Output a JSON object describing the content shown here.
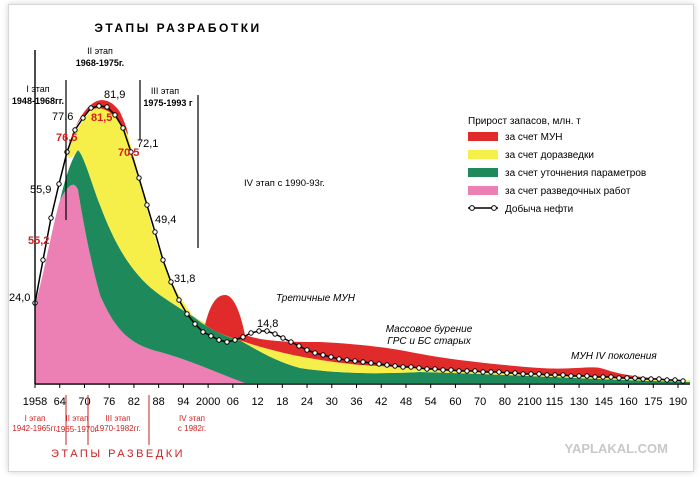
{
  "chart_data": {
    "type": "area",
    "title": "ЭТАПЫ РАЗРАБОТКИ",
    "bottom_title": "ЭТАПЫ РАЗВЕДКИ",
    "watermark": "YAPLAKAL.COM",
    "x_ticks": [
      "1958",
      "64",
      "70",
      "76",
      "82",
      "88",
      "94",
      "2000",
      "06",
      "12",
      "18",
      "24",
      "30",
      "36",
      "42",
      "48",
      "54",
      "60",
      "70",
      "80",
      "2100",
      "115",
      "130",
      "145",
      "160",
      "175",
      "190"
    ],
    "legend": {
      "title": "Прирост запасов, млн. т",
      "items": [
        {
          "label": "за счет МУН",
          "color": "#e12a2a"
        },
        {
          "label": "за счет доразведки",
          "color": "#f6ef4a"
        },
        {
          "label": "за счет уточнения параметров",
          "color": "#1e8a5c"
        },
        {
          "label": "за счет разведочных работ",
          "color": "#ec7fb4"
        },
        {
          "label": "Добыча нефти",
          "color": "#000000"
        }
      ]
    },
    "dev_stages": [
      {
        "name": "I этап",
        "years": "1948-1968гг."
      },
      {
        "name": "II этап",
        "years": "1968-1975г."
      },
      {
        "name": "III этап",
        "years": "1975-1993 г"
      },
      {
        "name": "IV этап с 1990-93г.",
        "years": ""
      }
    ],
    "exploration_stages": [
      {
        "name": "I этап",
        "years": "1942-1965гг."
      },
      {
        "name": "II этап",
        "years": "1965-1970г"
      },
      {
        "name": "III этап",
        "years": "1970-1982гг."
      },
      {
        "name": "IV этап",
        "years": "с 1982г."
      }
    ],
    "annotations": [
      "Третичные МУН",
      "Массовое бурение",
      "ГРС и БС старых",
      "МУН  IV поколения"
    ],
    "production": [
      24.0,
      55.9,
      77.6,
      81.9,
      72.1,
      49.4,
      31.8,
      14.8
    ],
    "production_labels": [
      "24,0",
      "55,9",
      "77,6",
      "81,9",
      "72,1",
      "49,4",
      "31,8",
      "14,8"
    ],
    "reserve_labels": [
      "55,2",
      "76,5",
      "81,5",
      "70,5"
    ]
  }
}
